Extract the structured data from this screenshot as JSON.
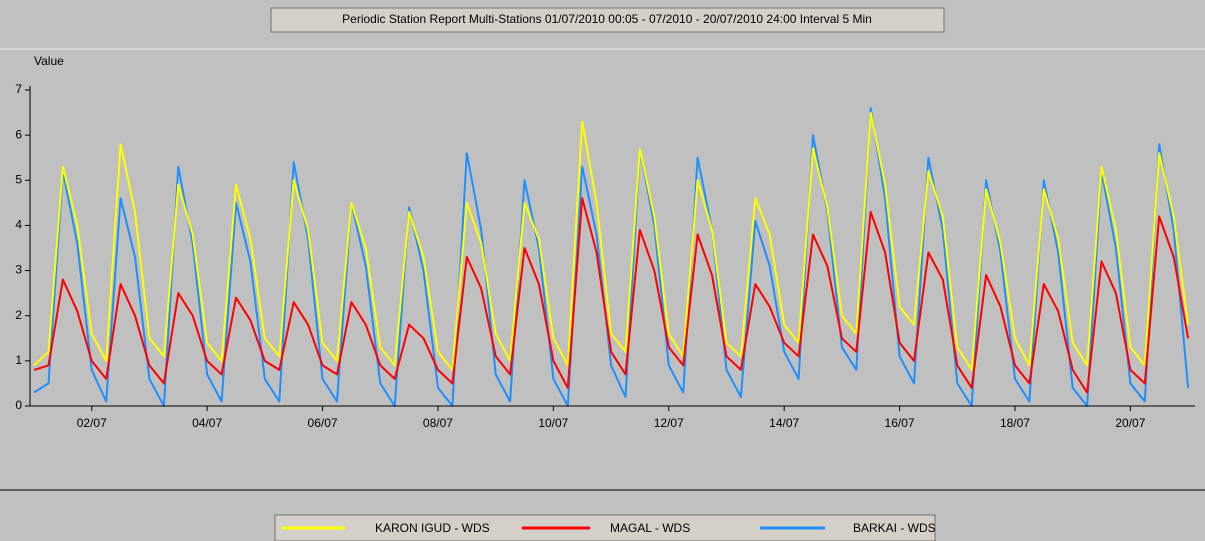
{
  "chart_data": {
    "type": "line",
    "title": "Periodic Station Report Multi-Stations 01/07/2010 00:05 - 07/2010 - 20/07/2010 24:00 Interval 5 Min",
    "y_label": "Value",
    "x": [
      1,
      1.25,
      1.5,
      1.75,
      2,
      2.25,
      2.5,
      2.75,
      3,
      3.25,
      3.5,
      3.75,
      4,
      4.25,
      4.5,
      4.75,
      5,
      5.25,
      5.5,
      5.75,
      6,
      6.25,
      6.5,
      6.75,
      7,
      7.25,
      7.5,
      7.75,
      8,
      8.25,
      8.5,
      8.75,
      9,
      9.25,
      9.5,
      9.75,
      10,
      10.25,
      10.5,
      10.75,
      11,
      11.25,
      11.5,
      11.75,
      12,
      12.25,
      12.5,
      12.75,
      13,
      13.25,
      13.5,
      13.75,
      14,
      14.25,
      14.5,
      14.75,
      15,
      15.25,
      15.5,
      15.75,
      16,
      16.25,
      16.5,
      16.75,
      17,
      17.25,
      17.5,
      17.75,
      18,
      18.25,
      18.5,
      18.75,
      19,
      19.25,
      19.5,
      19.75,
      20,
      20.25,
      20.5,
      20.75,
      21
    ],
    "series": [
      {
        "name": "KARON IGUD - WDS",
        "color": "#ffff00",
        "values": [
          0.9,
          1.2,
          5.3,
          4.0,
          1.6,
          1.0,
          5.8,
          4.3,
          1.5,
          1.1,
          4.9,
          3.8,
          1.4,
          1.0,
          4.9,
          3.7,
          1.5,
          1.1,
          5.0,
          3.9,
          1.4,
          1.0,
          4.5,
          3.5,
          1.3,
          0.9,
          4.3,
          3.3,
          1.2,
          0.8,
          4.5,
          3.6,
          1.6,
          1.0,
          4.5,
          3.7,
          1.5,
          0.9,
          6.3,
          4.5,
          1.6,
          1.2,
          5.7,
          4.2,
          1.6,
          1.1,
          5.0,
          3.9,
          1.4,
          1.1,
          4.6,
          3.8,
          1.8,
          1.4,
          5.7,
          4.4,
          2.0,
          1.6,
          6.5,
          4.9,
          2.2,
          1.8,
          5.2,
          4.2,
          1.3,
          0.8,
          4.8,
          3.6,
          1.5,
          0.9,
          4.8,
          3.7,
          1.4,
          0.9,
          5.3,
          3.9,
          1.3,
          0.9,
          5.6,
          4.2,
          1.8
        ]
      },
      {
        "name": "MAGAL - WDS",
        "color": "#ff0000",
        "values": [
          0.8,
          0.9,
          2.8,
          2.1,
          1.0,
          0.6,
          2.7,
          2.0,
          0.9,
          0.5,
          2.5,
          2.0,
          1.0,
          0.7,
          2.4,
          1.9,
          1.0,
          0.8,
          2.3,
          1.8,
          0.9,
          0.7,
          2.3,
          1.8,
          0.9,
          0.6,
          1.8,
          1.5,
          0.8,
          0.5,
          3.3,
          2.6,
          1.1,
          0.7,
          3.5,
          2.7,
          1.0,
          0.4,
          4.6,
          3.4,
          1.2,
          0.7,
          3.9,
          3.0,
          1.3,
          0.9,
          3.8,
          2.9,
          1.1,
          0.8,
          2.7,
          2.2,
          1.4,
          1.1,
          3.8,
          3.1,
          1.5,
          1.2,
          4.3,
          3.4,
          1.4,
          1.0,
          3.4,
          2.8,
          0.9,
          0.4,
          2.9,
          2.2,
          0.9,
          0.5,
          2.7,
          2.1,
          0.8,
          0.3,
          3.2,
          2.5,
          0.8,
          0.5,
          4.2,
          3.3,
          1.5
        ]
      },
      {
        "name": "BARKAI - WDS",
        "color": "#1e8fff",
        "values": [
          0.3,
          0.5,
          5.2,
          3.6,
          0.8,
          0.1,
          4.6,
          3.3,
          0.6,
          0.0,
          5.3,
          3.6,
          0.7,
          0.1,
          4.5,
          3.2,
          0.6,
          0.1,
          5.4,
          3.7,
          0.6,
          0.1,
          4.5,
          3.1,
          0.5,
          0.0,
          4.4,
          3.0,
          0.4,
          0.0,
          5.6,
          3.9,
          0.7,
          0.1,
          5.0,
          3.5,
          0.6,
          0.0,
          5.3,
          3.8,
          0.9,
          0.2,
          5.7,
          4.0,
          0.9,
          0.3,
          5.5,
          3.9,
          0.8,
          0.2,
          4.1,
          3.1,
          1.2,
          0.6,
          6.0,
          4.3,
          1.3,
          0.8,
          6.6,
          4.6,
          1.1,
          0.5,
          5.5,
          3.9,
          0.5,
          0.0,
          5.0,
          3.4,
          0.6,
          0.1,
          5.0,
          3.4,
          0.4,
          0.0,
          5.2,
          3.5,
          0.5,
          0.1,
          5.8,
          3.9,
          0.4
        ]
      }
    ],
    "xlim": [
      0.93,
      21.12
    ],
    "xticks": [
      {
        "value": 2,
        "label": "02/07"
      },
      {
        "value": 4,
        "label": "04/07"
      },
      {
        "value": 6,
        "label": "06/07"
      },
      {
        "value": 8,
        "label": "08/07"
      },
      {
        "value": 10,
        "label": "10/07"
      },
      {
        "value": 12,
        "label": "12/07"
      },
      {
        "value": 14,
        "label": "14/07"
      },
      {
        "value": 16,
        "label": "16/07"
      },
      {
        "value": 18,
        "label": "18/07"
      },
      {
        "value": 20,
        "label": "20/07"
      }
    ],
    "ylim": [
      0,
      7
    ],
    "yticks": [
      0,
      1,
      2,
      3,
      4,
      5,
      6,
      7
    ],
    "grid": false
  }
}
